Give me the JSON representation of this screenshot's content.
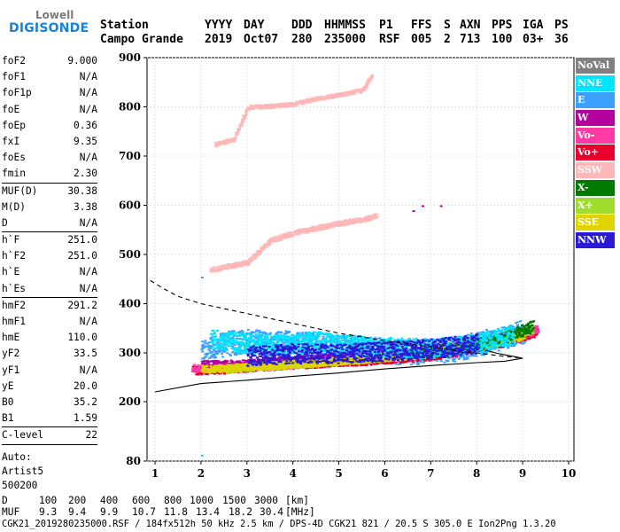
{
  "logo": {
    "line1": "Lowell",
    "line2": "DIGISONDE"
  },
  "header": {
    "labels": [
      "Station",
      "YYYY",
      "DAY",
      "DDD",
      "HHMMSS",
      "P1",
      "FFS",
      "S",
      "AXN",
      "PPS",
      "IGA",
      "PS"
    ],
    "values": [
      "Campo Grande",
      "2019",
      "Oct07",
      "280",
      "235000",
      "RSF",
      "005",
      "2",
      "713",
      "100",
      "03+",
      "36"
    ]
  },
  "params": {
    "group1": [
      {
        "name": "foF2",
        "value": "9.000"
      },
      {
        "name": "foF1",
        "value": "N/A"
      },
      {
        "name": "foF1p",
        "value": "N/A"
      },
      {
        "name": "foE",
        "value": "N/A"
      },
      {
        "name": "foEp",
        "value": "0.36"
      },
      {
        "name": "fxI",
        "value": "9.35"
      },
      {
        "name": "foEs",
        "value": "N/A"
      },
      {
        "name": "fmin",
        "value": "2.30"
      }
    ],
    "group2": [
      {
        "name": "MUF(D)",
        "value": "30.38"
      },
      {
        "name": "M(D)",
        "value": "3.38"
      },
      {
        "name": "D",
        "value": "N/A"
      }
    ],
    "group3": [
      {
        "name": "h`F",
        "value": "251.0"
      },
      {
        "name": "h`F2",
        "value": "251.0"
      },
      {
        "name": "h`E",
        "value": "N/A"
      },
      {
        "name": "h`Es",
        "value": "N/A"
      }
    ],
    "group4": [
      {
        "name": "hmF2",
        "value": "291.2"
      },
      {
        "name": "hmF1",
        "value": "N/A"
      },
      {
        "name": "hmE",
        "value": "110.0"
      },
      {
        "name": "yF2",
        "value": "33.5"
      },
      {
        "name": "yF1",
        "value": "N/A"
      },
      {
        "name": "yE",
        "value": "20.0"
      },
      {
        "name": "B0",
        "value": "35.2"
      },
      {
        "name": "B1",
        "value": "1.59"
      }
    ],
    "group5": [
      {
        "name": "C-level",
        "value": "22"
      }
    ],
    "auto_lines": [
      "Auto:",
      "Artist5",
      "500200"
    ]
  },
  "legend": [
    {
      "label": "NoVal",
      "bg": "#808080",
      "fg": "#ffffff"
    },
    {
      "label": "NNE",
      "bg": "#00e5ff",
      "fg": "#ffffff"
    },
    {
      "label": "E",
      "bg": "#3ca0ff",
      "fg": "#ffffff"
    },
    {
      "label": "W",
      "bg": "#b4009c",
      "fg": "#ffffff"
    },
    {
      "label": "Vo-",
      "bg": "#ff3aa6",
      "fg": "#ffffff"
    },
    {
      "label": "Vo+",
      "bg": "#e8002d",
      "fg": "#ffffff"
    },
    {
      "label": "SSW",
      "bg": "#ffb7b7",
      "fg": "#ffffff"
    },
    {
      "label": "X-",
      "bg": "#007a00",
      "fg": "#ffffff"
    },
    {
      "label": "X+",
      "bg": "#9fdd2e",
      "fg": "#ffffff"
    },
    {
      "label": "SSE",
      "bg": "#e0d400",
      "fg": "#ffffff"
    },
    {
      "label": "NNW",
      "bg": "#2a1ad6",
      "fg": "#ffffff"
    }
  ],
  "footer": {
    "d_label": "D",
    "d_values": [
      "100",
      "200",
      "400",
      "600",
      "800",
      "1000",
      "1500",
      "3000",
      "[km]"
    ],
    "muf_label": "MUF",
    "muf_values": [
      "9.3",
      "9.4",
      "9.9",
      "10.7",
      "11.8",
      "13.4",
      "18.2",
      "30.4",
      "[MHz]"
    ],
    "info": "CGK21_2019280235000.RSF / 184fx512h 50 kHz 2.5 km / DPS-4D CGK21 821 / 20.5 S 305.0 E Ion2Png 1.3.20"
  },
  "chart_data": {
    "type": "scatter",
    "title": "",
    "xlabel": "",
    "ylabel": "",
    "xlim": [
      1,
      10
    ],
    "ylim": [
      80,
      900
    ],
    "x_ticks": [
      1,
      2,
      3,
      4,
      5,
      6,
      7,
      8,
      9,
      10
    ],
    "y_ticks": [
      80,
      200,
      300,
      400,
      500,
      600,
      700,
      800,
      900
    ],
    "colors": {
      "NoVal": "#808080",
      "NNE": "#00e5ff",
      "E": "#3ca0ff",
      "W": "#b4009c",
      "Vo-": "#ff3aa6",
      "Vo+": "#e8002d",
      "SSW": "#ffb7b7",
      "X-": "#007a00",
      "X+": "#9fdd2e",
      "SSE": "#e0d400",
      "NNW": "#2a1ad6"
    },
    "traces": [
      {
        "name": "E echo band",
        "color_key": "E",
        "x": [
          2.0,
          2.5,
          3.0,
          3.5,
          4.0,
          4.5,
          5.0,
          5.5,
          6.0,
          6.5,
          7.0,
          7.5,
          8.0,
          8.5,
          9.0
        ],
        "y": [
          300,
          320,
          325,
          320,
          322,
          318,
          315,
          312,
          305,
          302,
          305,
          308,
          320,
          330,
          345
        ],
        "spread": 25
      },
      {
        "name": "Vo+ main trace",
        "color_key": "Vo+",
        "x": [
          1.8,
          2.5,
          3.0,
          3.5,
          4.0,
          4.5,
          5.0,
          5.5,
          6.0,
          6.5,
          7.0,
          7.5,
          8.0,
          8.5,
          9.0,
          9.3
        ],
        "y": [
          265,
          268,
          272,
          275,
          278,
          280,
          283,
          285,
          288,
          292,
          296,
          303,
          313,
          322,
          335,
          345
        ],
        "spread": 9
      },
      {
        "name": "Vo- main trace",
        "color_key": "Vo-",
        "x": [
          1.8,
          2.5,
          3.0,
          3.5,
          4.0,
          4.5,
          5.0,
          5.5,
          6.0,
          6.5,
          7.0,
          7.5,
          8.0,
          8.5,
          9.0,
          9.3
        ],
        "y": [
          270,
          272,
          275,
          278,
          282,
          285,
          288,
          290,
          293,
          297,
          300,
          307,
          317,
          325,
          338,
          350
        ],
        "spread": 8
      },
      {
        "name": "W trace",
        "color_key": "W",
        "x": [
          2.0,
          3.0,
          4.0,
          5.0,
          6.0,
          7.0,
          8.0,
          9.0
        ],
        "y": [
          275,
          278,
          285,
          290,
          295,
          305,
          320,
          340
        ],
        "spread": 10
      },
      {
        "name": "X+ trace",
        "color_key": "X+",
        "x": [
          2.5,
          3.5,
          4.5,
          5.5,
          6.5,
          7.5,
          8.5,
          9.2
        ],
        "y": [
          268,
          275,
          282,
          288,
          297,
          308,
          325,
          350
        ],
        "spread": 8
      },
      {
        "name": "SSE trace",
        "color_key": "SSE",
        "x": [
          2.0,
          3.0,
          4.0,
          5.0,
          6.0,
          7.0,
          8.0,
          9.0
        ],
        "y": [
          268,
          272,
          278,
          285,
          292,
          300,
          315,
          335
        ],
        "spread": 8
      },
      {
        "name": "X- trace",
        "color_key": "X-",
        "x": [
          6.5,
          7.5,
          8.5,
          9.2
        ],
        "y": [
          300,
          310,
          330,
          355
        ],
        "spread": 12
      },
      {
        "name": "NNE echoes",
        "color_key": "NNE",
        "x": [
          2.2,
          3.0,
          3.8,
          4.5,
          5.3,
          6.2,
          7.0,
          8.0,
          8.8
        ],
        "y": [
          330,
          320,
          318,
          325,
          315,
          312,
          310,
          320,
          340
        ],
        "spread": 20
      },
      {
        "name": "NNW echoes",
        "color_key": "NNW",
        "x": [
          3.0,
          4.0,
          5.0,
          6.0,
          7.0,
          8.0
        ],
        "y": [
          295,
          300,
          300,
          305,
          310,
          320
        ],
        "spread": 20
      },
      {
        "name": "SSW multiple 2",
        "color_key": "SSW",
        "x": [
          2.2,
          2.6,
          3.0,
          3.5,
          4.0,
          4.5,
          5.0,
          5.5,
          5.8
        ],
        "y": [
          470,
          478,
          485,
          530,
          545,
          555,
          565,
          572,
          580
        ],
        "spread": 5
      },
      {
        "name": "SSW multiple 3",
        "color_key": "SSW",
        "x": [
          2.3,
          2.7,
          3.0,
          3.5,
          4.0,
          4.5,
          5.0,
          5.5,
          5.7
        ],
        "y": [
          725,
          735,
          800,
          803,
          807,
          818,
          826,
          835,
          865
        ],
        "spread": 4
      }
    ],
    "profile_solid": {
      "x": [
        1.0,
        2.0,
        3.0,
        4.0,
        5.0,
        6.0,
        7.0,
        8.0,
        8.6,
        9.0,
        8.8,
        8.5,
        8.2
      ],
      "y": [
        220,
        237,
        244,
        252,
        259,
        267,
        274,
        280,
        283,
        289,
        293,
        298,
        305
      ]
    },
    "profile_dashed": {
      "x": [
        0.9,
        1.2,
        1.5,
        2.0,
        2.5,
        3.0,
        4.0,
        5.0,
        6.0,
        7.0,
        8.0,
        8.6,
        8.9
      ],
      "y": [
        447,
        430,
        415,
        400,
        390,
        380,
        360,
        340,
        325,
        312,
        300,
        293,
        290
      ]
    }
  }
}
